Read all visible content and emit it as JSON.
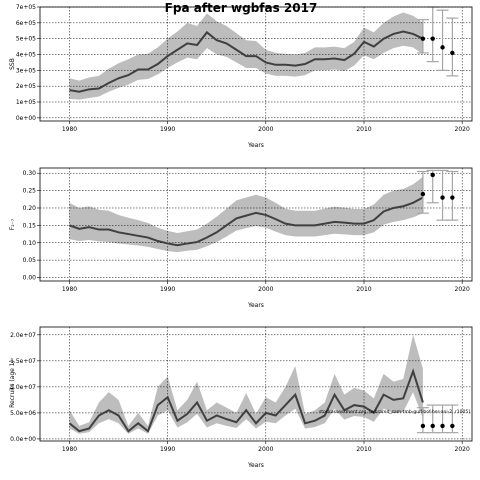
{
  "title": "Fpa after wgbfas 2017",
  "chart_data": [
    {
      "type": "area",
      "xlabel": "Years",
      "ylabel": "SSB",
      "xlim": [
        1977,
        2021
      ],
      "ylim": [
        -20000,
        700000
      ],
      "xticks": [
        1980,
        1990,
        2000,
        2010,
        2020
      ],
      "yticks": [
        0,
        100000,
        200000,
        300000,
        400000,
        500000,
        600000,
        700000
      ],
      "ytick_labels": [
        "0e+00",
        "1e+05",
        "2e+05",
        "3e+05",
        "4e+05",
        "5e+05",
        "6e+05",
        "7e+05"
      ],
      "grid": true,
      "x": [
        1980,
        1981,
        1982,
        1983,
        1984,
        1985,
        1986,
        1987,
        1988,
        1989,
        1990,
        1991,
        1992,
        1993,
        1994,
        1995,
        1996,
        1997,
        1998,
        1999,
        2000,
        2001,
        2002,
        2003,
        2004,
        2005,
        2006,
        2007,
        2008,
        2009,
        2010,
        2011,
        2012,
        2013,
        2014,
        2015,
        2016
      ],
      "median": [
        175000,
        165000,
        180000,
        185000,
        220000,
        250000,
        270000,
        305000,
        305000,
        340000,
        390000,
        430000,
        470000,
        460000,
        540000,
        490000,
        470000,
        430000,
        390000,
        390000,
        350000,
        335000,
        335000,
        330000,
        340000,
        370000,
        370000,
        375000,
        365000,
        405000,
        480000,
        450000,
        500000,
        530000,
        545000,
        530000,
        500000
      ],
      "lower": [
        120000,
        115000,
        125000,
        135000,
        165000,
        190000,
        210000,
        240000,
        245000,
        275000,
        315000,
        350000,
        380000,
        370000,
        440000,
        400000,
        385000,
        350000,
        315000,
        315000,
        280000,
        265000,
        265000,
        260000,
        270000,
        300000,
        300000,
        305000,
        295000,
        330000,
        395000,
        370000,
        410000,
        440000,
        455000,
        445000,
        400000
      ],
      "upper": [
        250000,
        235000,
        255000,
        265000,
        310000,
        345000,
        370000,
        400000,
        405000,
        445000,
        500000,
        545000,
        600000,
        580000,
        660000,
        610000,
        580000,
        535000,
        490000,
        485000,
        430000,
        410000,
        405000,
        400000,
        410000,
        445000,
        445000,
        450000,
        440000,
        480000,
        570000,
        540000,
        600000,
        640000,
        665000,
        645000,
        600000
      ],
      "projection": [
        {
          "x": 2016,
          "point": 500000,
          "lower": 410000,
          "upper": 620000
        },
        {
          "x": 2017,
          "point": 500000,
          "lower": 355000,
          "upper": 700000
        },
        {
          "x": 2018,
          "point": 445000,
          "lower": 300000,
          "upper": 680000
        },
        {
          "x": 2019,
          "point": 410000,
          "lower": 265000,
          "upper": 630000
        }
      ]
    },
    {
      "type": "area",
      "xlabel": "Years",
      "ylabel": "F₂₋₇",
      "xlim": [
        1977,
        2021
      ],
      "ylim": [
        -0.01,
        0.315
      ],
      "xticks": [
        1980,
        1990,
        2000,
        2010,
        2020
      ],
      "yticks": [
        0,
        0.05,
        0.1,
        0.15,
        0.2,
        0.25,
        0.3
      ],
      "ytick_labels": [
        "0.00",
        "0.05",
        "0.10",
        "0.15",
        "0.20",
        "0.25",
        "0.30"
      ],
      "grid": true,
      "x": [
        1980,
        1981,
        1982,
        1983,
        1984,
        1985,
        1986,
        1987,
        1988,
        1989,
        1990,
        1991,
        1992,
        1993,
        1994,
        1995,
        1996,
        1997,
        1998,
        1999,
        2000,
        2001,
        2002,
        2003,
        2004,
        2005,
        2006,
        2007,
        2008,
        2009,
        2010,
        2011,
        2012,
        2013,
        2014,
        2015,
        2016
      ],
      "median": [
        0.15,
        0.14,
        0.145,
        0.138,
        0.138,
        0.13,
        0.125,
        0.12,
        0.115,
        0.105,
        0.098,
        0.093,
        0.098,
        0.102,
        0.115,
        0.13,
        0.15,
        0.17,
        0.178,
        0.186,
        0.18,
        0.168,
        0.155,
        0.15,
        0.15,
        0.15,
        0.155,
        0.16,
        0.158,
        0.155,
        0.155,
        0.165,
        0.19,
        0.2,
        0.205,
        0.215,
        0.23
      ],
      "lower": [
        0.11,
        0.105,
        0.108,
        0.104,
        0.102,
        0.098,
        0.095,
        0.092,
        0.088,
        0.082,
        0.076,
        0.073,
        0.077,
        0.08,
        0.09,
        0.102,
        0.118,
        0.135,
        0.142,
        0.148,
        0.143,
        0.132,
        0.122,
        0.118,
        0.118,
        0.118,
        0.122,
        0.126,
        0.124,
        0.122,
        0.122,
        0.13,
        0.152,
        0.16,
        0.165,
        0.173,
        0.185
      ],
      "upper": [
        0.215,
        0.2,
        0.205,
        0.195,
        0.192,
        0.18,
        0.172,
        0.165,
        0.157,
        0.143,
        0.134,
        0.128,
        0.133,
        0.138,
        0.155,
        0.175,
        0.198,
        0.222,
        0.23,
        0.238,
        0.23,
        0.215,
        0.198,
        0.192,
        0.192,
        0.192,
        0.198,
        0.204,
        0.201,
        0.197,
        0.197,
        0.21,
        0.238,
        0.25,
        0.255,
        0.268,
        0.29
      ],
      "projection": [
        {
          "x": 2016,
          "point": 0.24,
          "lower": 0.185,
          "upper": 0.305
        },
        {
          "x": 2017,
          "point": 0.295,
          "lower": 0.215,
          "upper": 0.308
        },
        {
          "x": 2018,
          "point": 0.23,
          "lower": 0.165,
          "upper": 0.308
        },
        {
          "x": 2019,
          "point": 0.23,
          "lower": 0.165,
          "upper": 0.305
        }
      ]
    },
    {
      "type": "area",
      "xlabel": "Years",
      "ylabel": "Recruits (age 1)",
      "xlim": [
        1977,
        2021
      ],
      "ylim": [
        -400000,
        21500000
      ],
      "xticks": [
        1980,
        1990,
        2000,
        2010,
        2020
      ],
      "yticks": [
        0,
        5000000,
        10000000,
        15000000,
        20000000
      ],
      "ytick_labels": [
        "0.0e+00",
        "5.0e+06",
        "1.0e+07",
        "1.5e+07",
        "2.0e+07"
      ],
      "grid": true,
      "annotation": "stockassessment.org, [wbrared_sam-tmb-gulf-bof-her-ani-2, r1005]",
      "x": [
        1980,
        1981,
        1982,
        1983,
        1984,
        1985,
        1986,
        1987,
        1988,
        1989,
        1990,
        1991,
        1992,
        1993,
        1994,
        1995,
        1996,
        1997,
        1998,
        1999,
        2000,
        2001,
        2002,
        2003,
        2004,
        2005,
        2006,
        2007,
        2008,
        2009,
        2010,
        2011,
        2012,
        2013,
        2014,
        2015,
        2016
      ],
      "median": [
        3000000,
        1500000,
        2000000,
        4500000,
        5500000,
        4500000,
        1500000,
        3000000,
        1500000,
        6500000,
        8000000,
        3500000,
        4800000,
        7000000,
        3500000,
        4500000,
        3800000,
        3200000,
        5500000,
        3000000,
        5000000,
        4500000,
        6500000,
        8500000,
        3000000,
        3500000,
        4500000,
        8500000,
        5500000,
        6500000,
        6200000,
        5000000,
        8500000,
        7500000,
        7800000,
        13000000,
        7000000
      ],
      "lower": [
        2000000,
        1000000,
        1300000,
        3000000,
        3800000,
        3000000,
        1000000,
        2000000,
        1000000,
        4500000,
        5500000,
        2200000,
        3200000,
        4800000,
        2200000,
        3000000,
        2500000,
        2100000,
        3800000,
        2000000,
        3300000,
        3000000,
        4500000,
        5800000,
        2000000,
        2300000,
        3000000,
        5800000,
        3700000,
        4400000,
        4200000,
        3300000,
        5800000,
        5000000,
        5200000,
        9000000,
        4000000
      ],
      "upper": [
        5500000,
        2500000,
        3200000,
        7000000,
        9000000,
        7500000,
        2500000,
        5000000,
        2500000,
        10000000,
        12000000,
        5500000,
        7500000,
        11000000,
        5500000,
        7000000,
        6000000,
        5000000,
        8800000,
        4800000,
        8000000,
        7000000,
        10000000,
        14000000,
        4800000,
        5500000,
        7000000,
        12500000,
        8500000,
        9800000,
        9300000,
        7800000,
        12500000,
        11000000,
        11500000,
        20000000,
        13500000
      ],
      "projection": [
        {
          "x": 2016,
          "point": 2500000,
          "lower": 1200000,
          "upper": 6000000
        },
        {
          "x": 2017,
          "point": 2500000,
          "lower": 1200000,
          "upper": 6500000
        },
        {
          "x": 2018,
          "point": 2500000,
          "lower": 1200000,
          "upper": 6500000
        },
        {
          "x": 2019,
          "point": 2500000,
          "lower": 1200000,
          "upper": 6500000
        }
      ]
    }
  ]
}
